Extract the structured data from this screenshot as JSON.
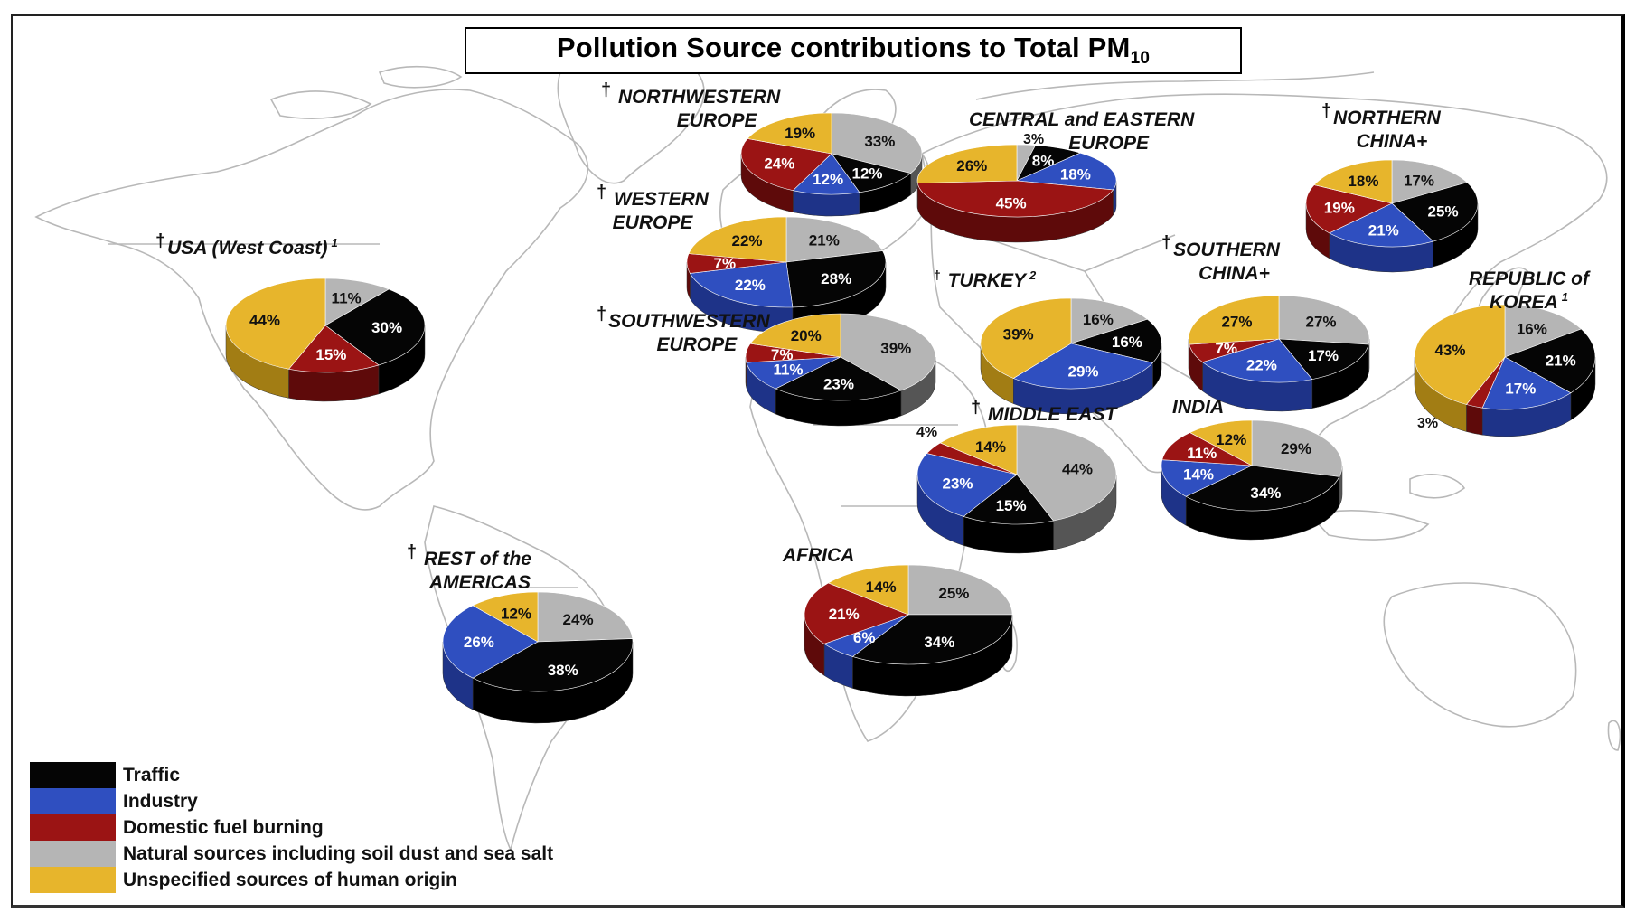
{
  "title": {
    "main": "Pollution Source contributions to Total PM",
    "subscript": "10"
  },
  "colors": {
    "traffic": "#050505",
    "industry": "#2f4fc0",
    "domestic": "#9b1414",
    "natural": "#b5b5b5",
    "unspecified": "#e7b52c"
  },
  "legend": [
    {
      "key": "traffic",
      "label": "Traffic"
    },
    {
      "key": "industry",
      "label": "Industry"
    },
    {
      "key": "domestic",
      "label": "Domestic fuel burning"
    },
    {
      "key": "natural",
      "label": "Natural sources including soil dust and sea salt"
    },
    {
      "key": "unspecified",
      "label": "Unspecified sources of human origin"
    }
  ],
  "regions": {
    "usa": {
      "line1": "USA (West Coast)",
      "sup": "1",
      "dagger": "†"
    },
    "nw_europe": {
      "line1": "NORTHWESTERN",
      "line2": "EUROPE",
      "dagger": "†"
    },
    "w_europe": {
      "line1": "WESTERN",
      "line2": "EUROPE",
      "dagger": "†"
    },
    "sw_europe": {
      "line1": "SOUTHWESTERN",
      "line2": "EUROPE",
      "dagger": "†"
    },
    "ce_europe": {
      "line1": "CENTRAL and EASTERN",
      "line2": "EUROPE"
    },
    "turkey": {
      "line1": "TURKEY",
      "sup": "2",
      "dagger": "†"
    },
    "middle_east": {
      "line1": "MIDDLE EAST",
      "dagger": "†"
    },
    "n_china": {
      "line1": "NORTHERN",
      "line2": "CHINA+",
      "dagger": "†"
    },
    "s_china": {
      "line1": "SOUTHERN",
      "line2": "CHINA+",
      "dagger": "†"
    },
    "korea": {
      "line1": "REPUBLIC of",
      "line2": "KOREA",
      "sup": "1"
    },
    "india": {
      "line1": "INDIA"
    },
    "africa": {
      "line1": "AFRICA"
    },
    "americas": {
      "line1": "REST of the",
      "line2": "AMERICAS",
      "dagger": "†"
    }
  },
  "chart_data": {
    "type": "pie",
    "title": "Pollution Source contributions to Total PM10",
    "legend_position": "bottom-left",
    "categories": [
      "Traffic",
      "Industry",
      "Domestic fuel burning",
      "Natural sources including soil dust and sea salt",
      "Unspecified sources of human origin"
    ],
    "pies": [
      {
        "region": "USA (West Coast)",
        "note": "1",
        "values": {
          "Traffic": 30,
          "Industry": 0,
          "Domestic fuel burning": 15,
          "Natural sources including soil dust and sea salt": 11,
          "Unspecified sources of human origin": 44
        }
      },
      {
        "region": "Northwestern Europe",
        "values": {
          "Traffic": 12,
          "Industry": 12,
          "Domestic fuel burning": 24,
          "Natural sources including soil dust and sea salt": 33,
          "Unspecified sources of human origin": 19
        }
      },
      {
        "region": "Western Europe",
        "values": {
          "Traffic": 28,
          "Industry": 22,
          "Domestic fuel burning": 7,
          "Natural sources including soil dust and sea salt": 21,
          "Unspecified sources of human origin": 22
        }
      },
      {
        "region": "Southwestern Europe",
        "values": {
          "Traffic": 23,
          "Industry": 11,
          "Domestic fuel burning": 7,
          "Natural sources including soil dust and sea salt": 39,
          "Unspecified sources of human origin": 20
        }
      },
      {
        "region": "Central and Eastern Europe",
        "values": {
          "Traffic": 8,
          "Industry": 18,
          "Domestic fuel burning": 45,
          "Natural sources including soil dust and sea salt": 3,
          "Unspecified sources of human origin": 26
        }
      },
      {
        "region": "Turkey",
        "note": "2",
        "values": {
          "Traffic": 16,
          "Industry": 29,
          "Domestic fuel burning": 0,
          "Natural sources including soil dust and sea salt": 16,
          "Unspecified sources of human origin": 39
        }
      },
      {
        "region": "Middle East",
        "values": {
          "Traffic": 15,
          "Industry": 23,
          "Domestic fuel burning": 4,
          "Natural sources including soil dust and sea salt": 44,
          "Unspecified sources of human origin": 14
        }
      },
      {
        "region": "Northern China+",
        "values": {
          "Traffic": 25,
          "Industry": 21,
          "Domestic fuel burning": 19,
          "Natural sources including soil dust and sea salt": 17,
          "Unspecified sources of human origin": 18
        }
      },
      {
        "region": "Southern China+",
        "values": {
          "Traffic": 17,
          "Industry": 22,
          "Domestic fuel burning": 7,
          "Natural sources including soil dust and sea salt": 27,
          "Unspecified sources of human origin": 27
        }
      },
      {
        "region": "Republic of Korea",
        "note": "1",
        "values": {
          "Traffic": 21,
          "Industry": 17,
          "Domestic fuel burning": 3,
          "Natural sources including soil dust and sea salt": 16,
          "Unspecified sources of human origin": 43
        }
      },
      {
        "region": "India",
        "values": {
          "Traffic": 34,
          "Industry": 14,
          "Domestic fuel burning": 11,
          "Natural sources including soil dust and sea salt": 29,
          "Unspecified sources of human origin": 12
        }
      },
      {
        "region": "Africa",
        "values": {
          "Traffic": 34,
          "Industry": 6,
          "Domestic fuel burning": 21,
          "Natural sources including soil dust and sea salt": 25,
          "Unspecified sources of human origin": 14
        }
      },
      {
        "region": "Rest of the Americas",
        "values": {
          "Traffic": 38,
          "Industry": 26,
          "Domestic fuel burning": 0,
          "Natural sources including soil dust and sea salt": 24,
          "Unspecified sources of human origin": 12
        }
      }
    ]
  },
  "callouts": {
    "korea_domestic": "3%",
    "middle_east_domestic": "4%",
    "ce_europe_natural": "3%"
  }
}
